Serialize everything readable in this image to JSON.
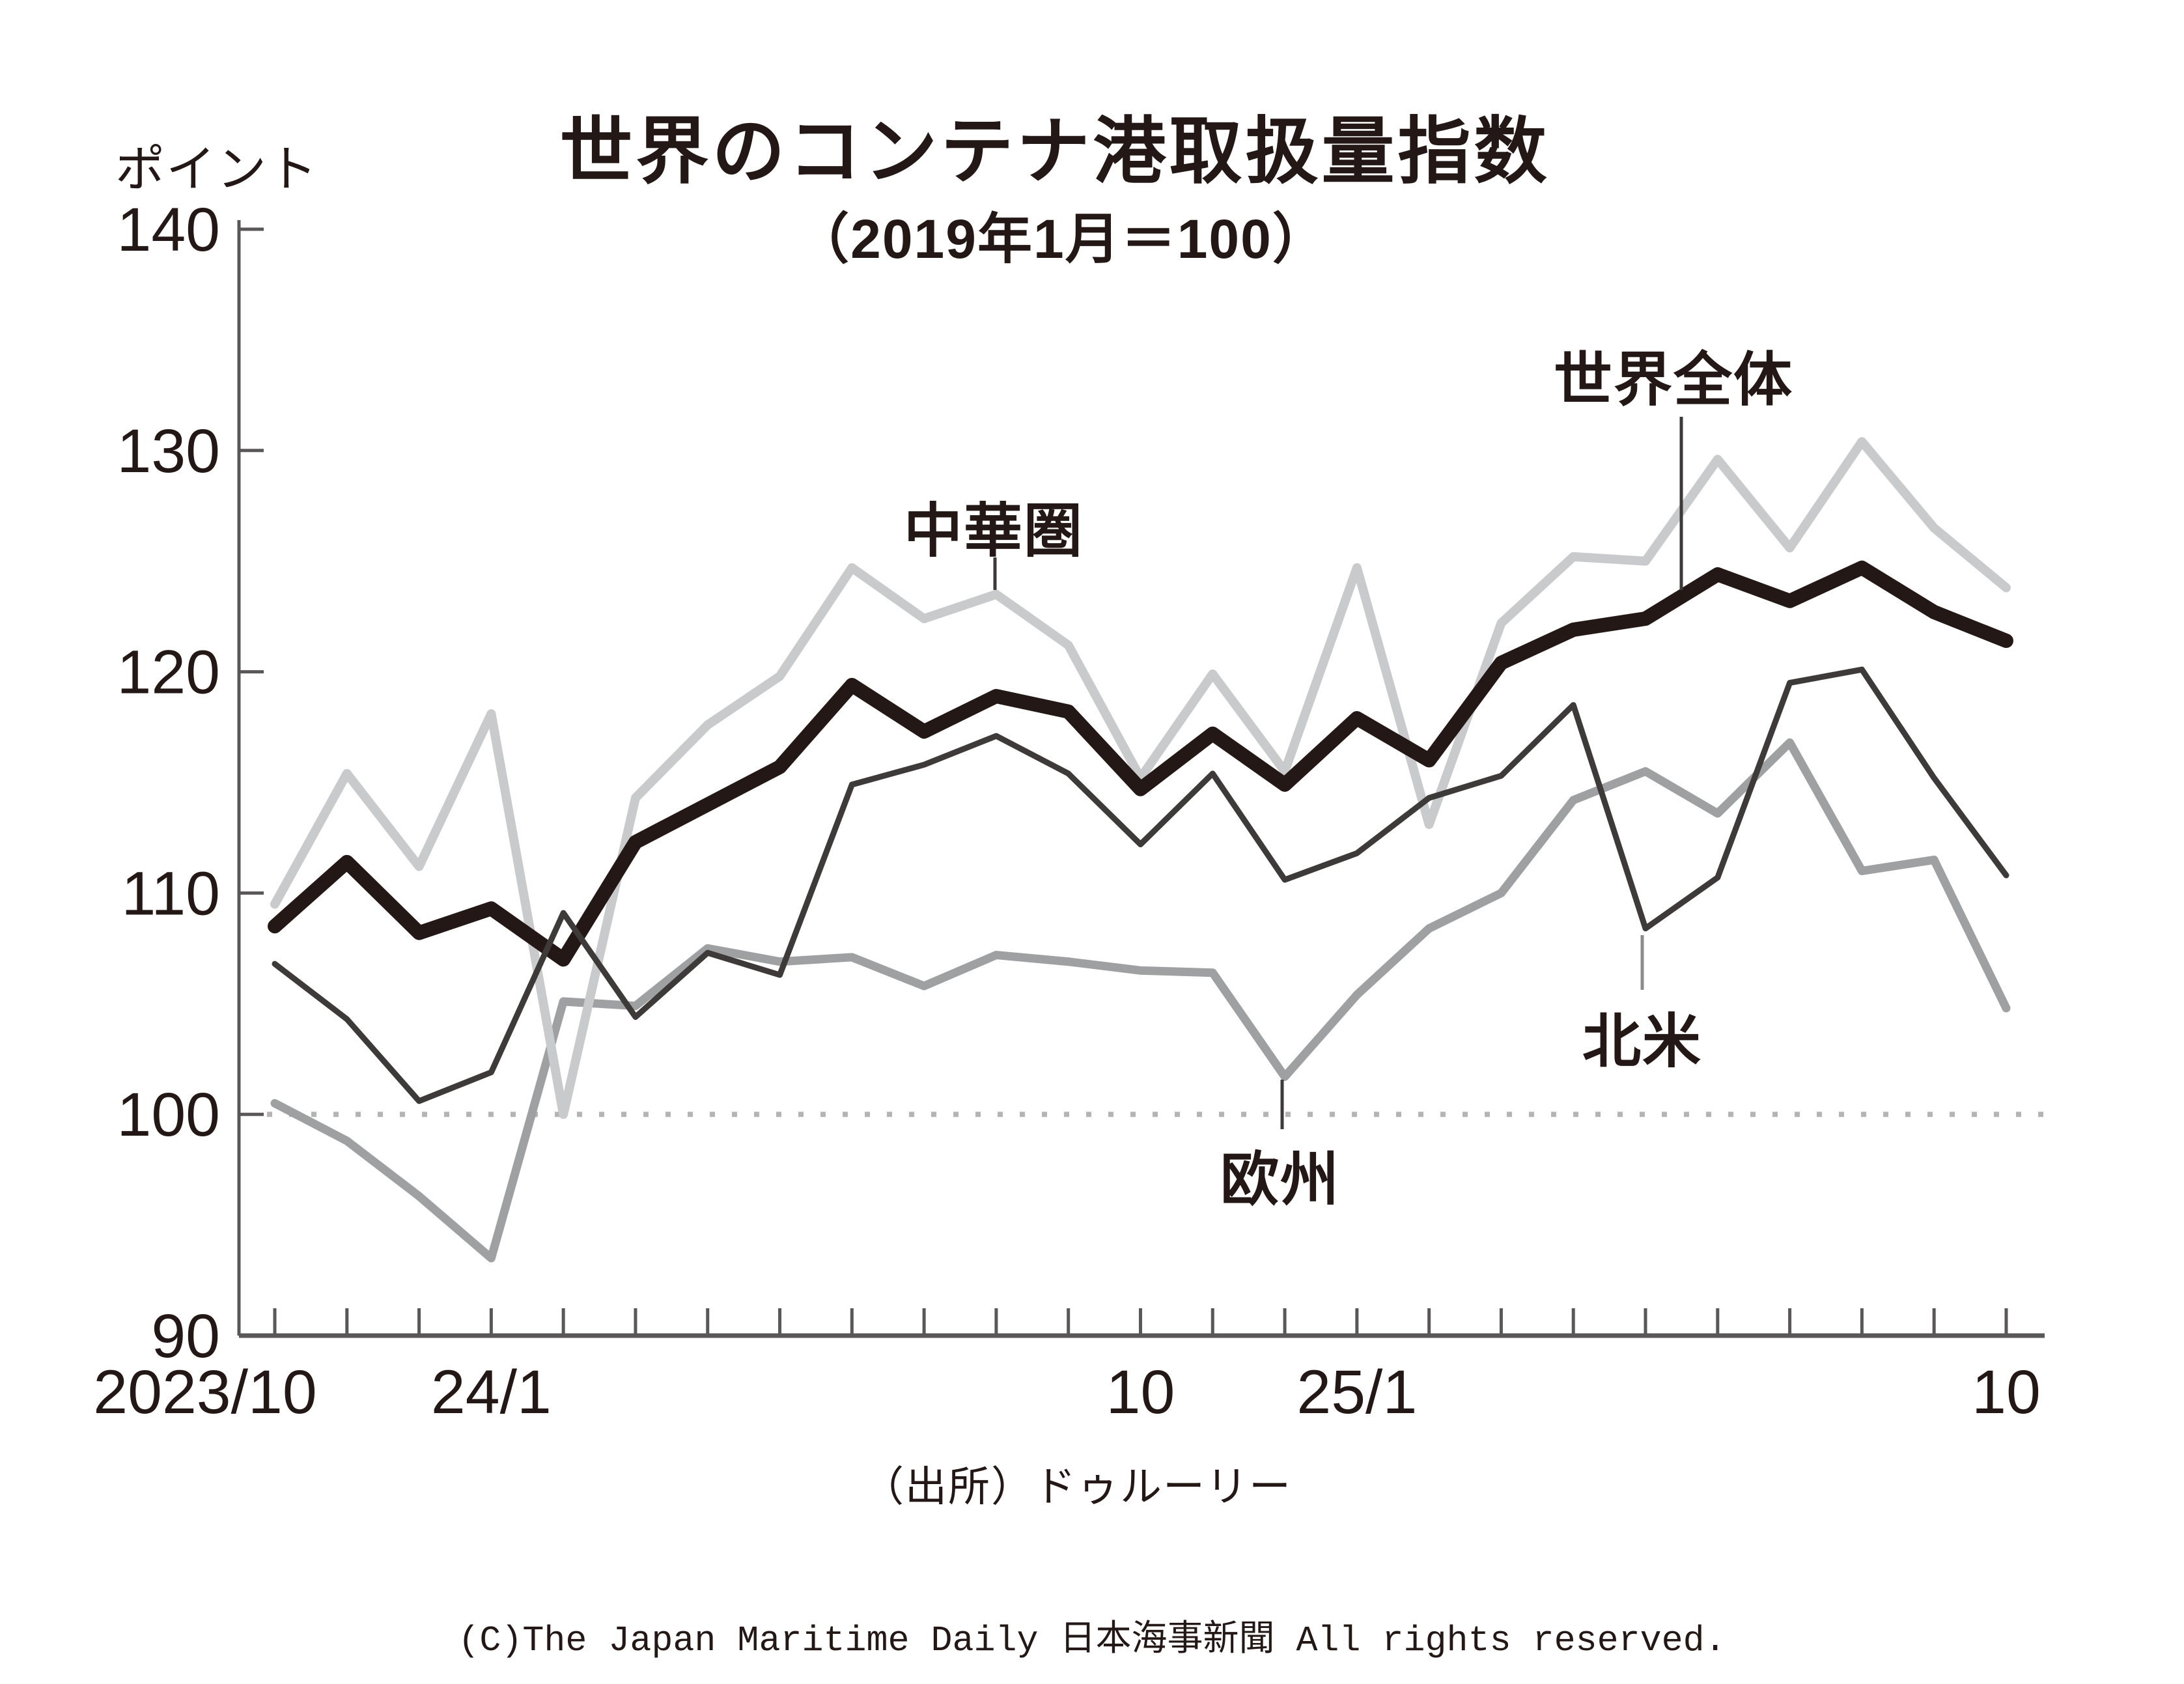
{
  "header": {
    "unit_label": "ポイント",
    "title": "世界のコンテナ港取扱量指数",
    "subtitle": "（2019年1月＝100）"
  },
  "chart_data": {
    "type": "line",
    "title": "世界のコンテナ港取扱量指数",
    "subtitle": "（2019年1月＝100）",
    "ylabel": "ポイント",
    "ylim": [
      90,
      140
    ],
    "y_ticks": [
      140,
      130,
      120,
      110,
      100,
      90
    ],
    "reference_line": 100,
    "grid": "off",
    "categories": [
      "2023/10",
      "2023/11",
      "2023/12",
      "24/1",
      "24/2",
      "24/3",
      "24/4",
      "24/5",
      "24/6",
      "24/7",
      "24/8",
      "24/9",
      "24/10",
      "24/11",
      "24/12",
      "25/1",
      "25/2",
      "25/3",
      "25/4",
      "25/5",
      "25/6",
      "25/7",
      "25/8",
      "25/9",
      "25/10"
    ],
    "x_axis_labels": [
      {
        "index": 0,
        "text": "2023/10"
      },
      {
        "index": 3,
        "text": "24/1"
      },
      {
        "index": 12,
        "text": "10"
      },
      {
        "index": 15,
        "text": "25/1"
      },
      {
        "index": 24,
        "text": "10"
      }
    ],
    "series": [
      {
        "name": "世界全体",
        "color": "#231815",
        "values": [
          108.5,
          111.4,
          108.2,
          109.3,
          107.0,
          112.3,
          114.0,
          115.7,
          119.4,
          117.3,
          118.9,
          118.2,
          114.7,
          117.2,
          114.9,
          117.9,
          116.0,
          120.4,
          121.9,
          122.4,
          124.4,
          123.2,
          124.7,
          122.7,
          121.4
        ]
      },
      {
        "name": "中華圏",
        "color": "#c9cacb",
        "values": [
          109.5,
          115.4,
          111.2,
          118.1,
          100.0,
          114.3,
          117.6,
          119.8,
          124.7,
          122.4,
          123.5,
          121.2,
          115.2,
          119.9,
          115.5,
          124.7,
          113.1,
          122.2,
          125.2,
          125.0,
          129.6,
          125.6,
          130.4,
          126.5,
          123.8
        ]
      },
      {
        "name": "北米",
        "color": "#3e3a39",
        "values": [
          106.8,
          104.3,
          100.6,
          101.9,
          109.1,
          104.4,
          107.3,
          106.3,
          114.9,
          115.8,
          117.1,
          115.4,
          112.2,
          115.4,
          110.6,
          111.8,
          114.3,
          115.3,
          118.5,
          108.4,
          110.7,
          119.5,
          120.1,
          115.2,
          110.8
        ]
      },
      {
        "name": "欧州",
        "color": "#9fa0a1",
        "values": [
          100.5,
          98.8,
          96.3,
          93.5,
          105.1,
          104.9,
          107.5,
          106.9,
          107.1,
          105.8,
          107.2,
          106.9,
          106.5,
          106.4,
          101.7,
          105.4,
          108.4,
          110.0,
          114.2,
          115.5,
          113.6,
          116.8,
          111.0,
          111.5,
          104.8
        ]
      }
    ]
  },
  "footer": {
    "source": "（出所）ドゥルーリー",
    "copyright": "(C)The Japan Maritime Daily 日本海事新聞 All rights reserved."
  }
}
